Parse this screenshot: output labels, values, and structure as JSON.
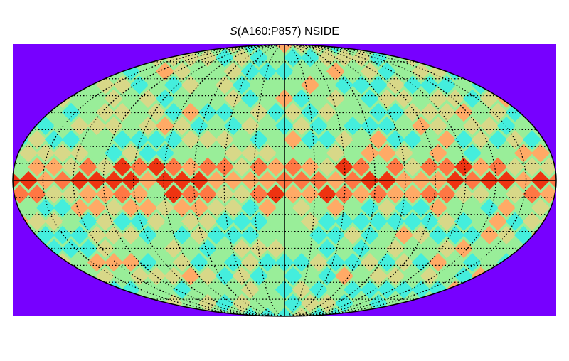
{
  "chart_data": {
    "type": "heatmap",
    "title_var": "S",
    "title_rest": "(A160:P857) NSIDE",
    "projection": "mollweide",
    "background_color": "#7700ff",
    "colormap": [
      "#44eedd",
      "#99ee99",
      "#d8d888",
      "#ffaa66",
      "#ff7744",
      "#ee3311"
    ],
    "graticule": {
      "longitude_lines": 18,
      "latitude_lines": 7,
      "style": "dotted"
    }
  }
}
